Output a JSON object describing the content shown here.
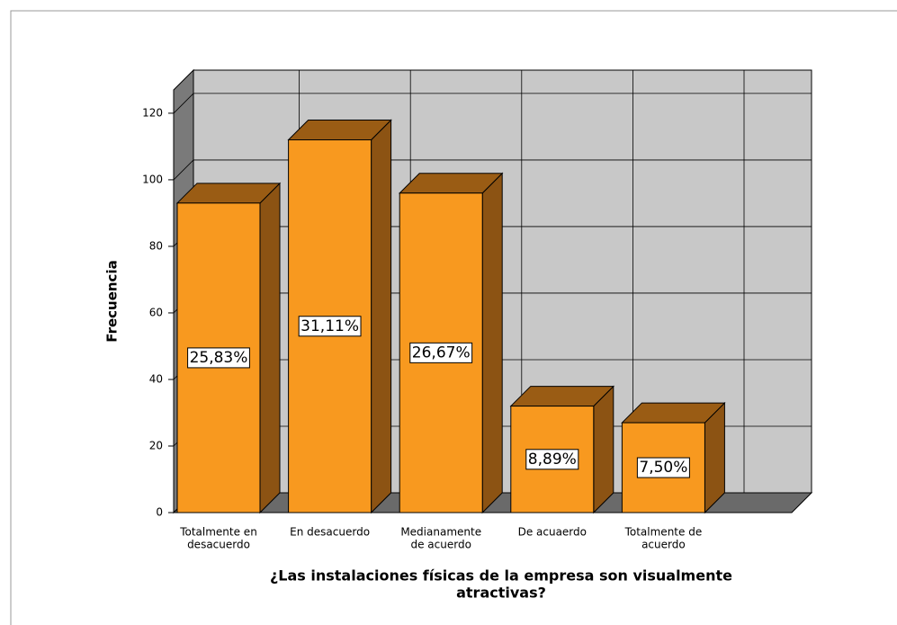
{
  "chart_data": {
    "type": "bar3d",
    "title": [
      "¿Las instalaciones físicas de la empresa son visualmente",
      "atractivas?"
    ],
    "y_label": "Frecuencia",
    "categories": [
      [
        "Totalmente en",
        "desacuerdo"
      ],
      [
        "En desacuerdo"
      ],
      [
        "Medianamente",
        "de acuerdo"
      ],
      [
        "De acuaerdo"
      ],
      [
        "Totalmente de",
        "acuerdo"
      ]
    ],
    "values": [
      93,
      112,
      96,
      32,
      27
    ],
    "percentages": [
      25.83,
      31.11,
      26.67,
      8.89,
      7.5
    ],
    "percent_labels": [
      "25,83%",
      "31,11%",
      "26,67%",
      "8,89%",
      "7,50%"
    ],
    "color": "#f8991f",
    "ylim": [
      0,
      127
    ],
    "yticks": [
      0,
      20,
      40,
      60,
      80,
      100,
      120
    ],
    "grid": true
  }
}
